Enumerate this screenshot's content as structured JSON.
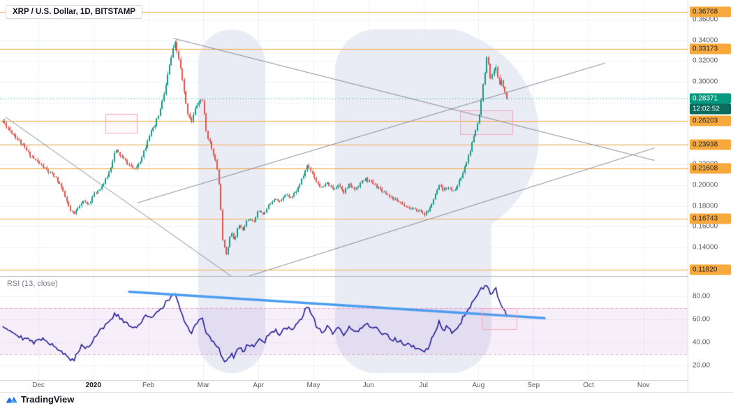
{
  "header": {
    "legend": "XRP / U.S. Dollar, 1D, BITSTAMP"
  },
  "watermark": {
    "letter": "P"
  },
  "price_axis": {
    "ticks": [
      {
        "label": "0.36000",
        "price": 0.36
      },
      {
        "label": "0.34000",
        "price": 0.34
      },
      {
        "label": "0.32000",
        "price": 0.32
      },
      {
        "label": "0.30000",
        "price": 0.3
      },
      {
        "label": "0.22000",
        "price": 0.22
      },
      {
        "label": "0.20000",
        "price": 0.2
      },
      {
        "label": "0.18000",
        "price": 0.18
      },
      {
        "label": "0.16000",
        "price": 0.16
      },
      {
        "label": "0.14000",
        "price": 0.14
      }
    ],
    "levels": [
      {
        "label": "0.36768",
        "price": 0.36768
      },
      {
        "label": "0.33173",
        "price": 0.33173
      },
      {
        "label": "0.26203",
        "price": 0.26203
      },
      {
        "label": "0.23938",
        "price": 0.23938
      },
      {
        "label": "0.21608",
        "price": 0.21608
      },
      {
        "label": "0.16743",
        "price": 0.16743
      },
      {
        "label": "0.11820",
        "price": 0.1182
      }
    ],
    "current": {
      "label": "0.28371",
      "price": 0.28371
    },
    "countdown": "12:02:52"
  },
  "time_axis": {
    "labels": [
      "Dec",
      "2020",
      "Feb",
      "Mar",
      "Apr",
      "May",
      "Jun",
      "Jul",
      "Aug",
      "Sep",
      "Oct",
      "Nov"
    ]
  },
  "rsi_pane": {
    "title": "RSI (13, close)",
    "ticks": [
      {
        "label": "80.00",
        "value": 80
      },
      {
        "label": "60.00",
        "value": 60
      },
      {
        "label": "40.00",
        "value": 40
      },
      {
        "label": "20.00",
        "value": 20
      }
    ]
  },
  "footer": {
    "brand": "TradingView"
  },
  "colors": {
    "up_candle": "#159a84",
    "down_candle": "#e8504a",
    "level_line": "#f5a73b",
    "level_badge_bg": "#f8a93c",
    "level_badge_text": "#21252e",
    "current_line": "#089981",
    "current_badge_bg": "#089981",
    "countdown_badge_bg": "#0b6b5d",
    "trendline": "#888c97",
    "box_stroke": "#f3a9bc",
    "box_fill": "rgba(243,169,188,0.07)",
    "rsi_line": "#241d94",
    "rsi_band_fill": "rgba(186,134,216,0.13)",
    "rsi_band_line": "rgba(236,100,160,0.55)",
    "rsi_trendline": "#4a9df0",
    "watermark": "#e9ebf5",
    "grid": "#eef1f7",
    "separator": "#b2b5be"
  },
  "chart_data": {
    "type": "candlestick",
    "symbol": "XRP/USD",
    "exchange": "BITSTAMP",
    "interval": "1D",
    "x_unit": "months_since_dec1_2019",
    "t_range": [
      -0.65,
      8.52
    ],
    "ylim": [
      0.112,
      0.374
    ],
    "current_price": 0.28371,
    "horizontal_levels": [
      0.36768,
      0.33173,
      0.26203,
      0.23938,
      0.21608,
      0.16743,
      0.1182
    ],
    "price_keypoints": [
      [
        -0.65,
        0.262
      ],
      [
        -0.5,
        0.252
      ],
      [
        -0.35,
        0.243
      ],
      [
        -0.2,
        0.232
      ],
      [
        -0.05,
        0.224
      ],
      [
        0.1,
        0.217
      ],
      [
        0.2,
        0.212
      ],
      [
        0.3,
        0.208
      ],
      [
        0.4,
        0.2
      ],
      [
        0.5,
        0.186
      ],
      [
        0.58,
        0.175
      ],
      [
        0.65,
        0.172
      ],
      [
        0.72,
        0.179
      ],
      [
        0.8,
        0.185
      ],
      [
        0.9,
        0.181
      ],
      [
        1.0,
        0.19
      ],
      [
        1.1,
        0.196
      ],
      [
        1.2,
        0.203
      ],
      [
        1.3,
        0.215
      ],
      [
        1.4,
        0.234
      ],
      [
        1.5,
        0.228
      ],
      [
        1.6,
        0.222
      ],
      [
        1.75,
        0.215
      ],
      [
        1.85,
        0.224
      ],
      [
        1.95,
        0.238
      ],
      [
        2.0,
        0.248
      ],
      [
        2.1,
        0.255
      ],
      [
        2.2,
        0.27
      ],
      [
        2.3,
        0.292
      ],
      [
        2.4,
        0.32
      ],
      [
        2.48,
        0.337
      ],
      [
        2.55,
        0.322
      ],
      [
        2.62,
        0.3
      ],
      [
        2.7,
        0.272
      ],
      [
        2.78,
        0.262
      ],
      [
        2.88,
        0.278
      ],
      [
        2.98,
        0.284
      ],
      [
        3.05,
        0.252
      ],
      [
        3.12,
        0.24
      ],
      [
        3.2,
        0.228
      ],
      [
        3.28,
        0.205
      ],
      [
        3.35,
        0.148
      ],
      [
        3.42,
        0.133
      ],
      [
        3.5,
        0.155
      ],
      [
        3.56,
        0.147
      ],
      [
        3.64,
        0.162
      ],
      [
        3.72,
        0.156
      ],
      [
        3.8,
        0.168
      ],
      [
        3.9,
        0.164
      ],
      [
        4.0,
        0.176
      ],
      [
        4.1,
        0.172
      ],
      [
        4.2,
        0.182
      ],
      [
        4.3,
        0.188
      ],
      [
        4.4,
        0.184
      ],
      [
        4.5,
        0.192
      ],
      [
        4.6,
        0.188
      ],
      [
        4.7,
        0.196
      ],
      [
        4.8,
        0.207
      ],
      [
        4.88,
        0.219
      ],
      [
        4.96,
        0.214
      ],
      [
        5.05,
        0.204
      ],
      [
        5.15,
        0.197
      ],
      [
        5.25,
        0.202
      ],
      [
        5.35,
        0.196
      ],
      [
        5.45,
        0.201
      ],
      [
        5.55,
        0.194
      ],
      [
        5.65,
        0.2
      ],
      [
        5.75,
        0.196
      ],
      [
        5.85,
        0.202
      ],
      [
        5.95,
        0.206
      ],
      [
        6.05,
        0.203
      ],
      [
        6.15,
        0.199
      ],
      [
        6.25,
        0.195
      ],
      [
        6.35,
        0.191
      ],
      [
        6.45,
        0.187
      ],
      [
        6.55,
        0.184
      ],
      [
        6.65,
        0.181
      ],
      [
        6.75,
        0.178
      ],
      [
        6.85,
        0.176
      ],
      [
        6.95,
        0.175
      ],
      [
        7.02,
        0.172
      ],
      [
        7.1,
        0.176
      ],
      [
        7.18,
        0.186
      ],
      [
        7.28,
        0.199
      ],
      [
        7.36,
        0.195
      ],
      [
        7.44,
        0.199
      ],
      [
        7.52,
        0.194
      ],
      [
        7.6,
        0.198
      ],
      [
        7.68,
        0.207
      ],
      [
        7.76,
        0.219
      ],
      [
        7.84,
        0.232
      ],
      [
        7.92,
        0.247
      ],
      [
        8.0,
        0.263
      ],
      [
        8.06,
        0.288
      ],
      [
        8.12,
        0.312
      ],
      [
        8.15,
        0.324
      ],
      [
        8.17,
        0.32
      ],
      [
        8.22,
        0.3
      ],
      [
        8.27,
        0.308
      ],
      [
        8.32,
        0.313
      ],
      [
        8.37,
        0.296
      ],
      [
        8.42,
        0.304
      ],
      [
        8.47,
        0.291
      ],
      [
        8.52,
        0.28371
      ]
    ],
    "trendlines": [
      {
        "name": "left-descending",
        "from": [
          -0.6,
          0.266
        ],
        "to": [
          3.75,
          0.103
        ]
      },
      {
        "name": "rising-support",
        "from": [
          1.8,
          0.183
        ],
        "to": [
          10.3,
          0.318
        ]
      },
      {
        "name": "long-descending-resistance",
        "from": [
          2.45,
          0.342
        ],
        "to": [
          11.2,
          0.224
        ]
      },
      {
        "name": "rising-from-march-low",
        "from": [
          3.4,
          0.105
        ],
        "to": [
          11.2,
          0.236
        ]
      }
    ],
    "boxes": [
      {
        "pane": "main",
        "from": [
          1.22,
          0.269
        ],
        "to": [
          1.79,
          0.251
        ]
      },
      {
        "pane": "main",
        "from": [
          7.67,
          0.272
        ],
        "to": [
          8.62,
          0.249
        ]
      },
      {
        "pane": "rsi",
        "from": [
          8.06,
          70
        ],
        "to": [
          8.69,
          52
        ]
      }
    ],
    "rsi": {
      "period": 13,
      "source": "close",
      "ylim": [
        13,
        95
      ],
      "band": [
        30,
        70
      ],
      "trendline": {
        "from": [
          1.65,
          84
        ],
        "to": [
          9.2,
          61
        ]
      },
      "keypoints": [
        [
          -0.65,
          55
        ],
        [
          -0.5,
          50
        ],
        [
          -0.35,
          46
        ],
        [
          -0.2,
          42
        ],
        [
          -0.05,
          40
        ],
        [
          0.1,
          44
        ],
        [
          0.2,
          40
        ],
        [
          0.3,
          37
        ],
        [
          0.4,
          33
        ],
        [
          0.5,
          28
        ],
        [
          0.58,
          25
        ],
        [
          0.65,
          24
        ],
        [
          0.72,
          33
        ],
        [
          0.8,
          38
        ],
        [
          0.9,
          35
        ],
        [
          1.0,
          43
        ],
        [
          1.1,
          50
        ],
        [
          1.2,
          54
        ],
        [
          1.3,
          59
        ],
        [
          1.4,
          65
        ],
        [
          1.5,
          60
        ],
        [
          1.6,
          56
        ],
        [
          1.75,
          52
        ],
        [
          1.85,
          57
        ],
        [
          1.95,
          62
        ],
        [
          2.1,
          64
        ],
        [
          2.2,
          68
        ],
        [
          2.3,
          73
        ],
        [
          2.4,
          79
        ],
        [
          2.48,
          83
        ],
        [
          2.55,
          72
        ],
        [
          2.62,
          62
        ],
        [
          2.7,
          53
        ],
        [
          2.78,
          49
        ],
        [
          2.88,
          57
        ],
        [
          2.98,
          60
        ],
        [
          3.05,
          49
        ],
        [
          3.12,
          44
        ],
        [
          3.2,
          40
        ],
        [
          3.28,
          35
        ],
        [
          3.35,
          26
        ],
        [
          3.42,
          22
        ],
        [
          3.5,
          31
        ],
        [
          3.56,
          28
        ],
        [
          3.64,
          36
        ],
        [
          3.72,
          32
        ],
        [
          3.8,
          39
        ],
        [
          3.9,
          36
        ],
        [
          4.0,
          43
        ],
        [
          4.1,
          40
        ],
        [
          4.2,
          47
        ],
        [
          4.3,
          51
        ],
        [
          4.4,
          47
        ],
        [
          4.5,
          53
        ],
        [
          4.6,
          50
        ],
        [
          4.7,
          55
        ],
        [
          4.8,
          62
        ],
        [
          4.88,
          71
        ],
        [
          4.96,
          65
        ],
        [
          5.05,
          55
        ],
        [
          5.15,
          49
        ],
        [
          5.25,
          53
        ],
        [
          5.35,
          48
        ],
        [
          5.45,
          52
        ],
        [
          5.55,
          47
        ],
        [
          5.65,
          52
        ],
        [
          5.75,
          48
        ],
        [
          5.85,
          53
        ],
        [
          5.95,
          56
        ],
        [
          6.05,
          54
        ],
        [
          6.15,
          51
        ],
        [
          6.25,
          48
        ],
        [
          6.35,
          45
        ],
        [
          6.45,
          43
        ],
        [
          6.55,
          41
        ],
        [
          6.65,
          39
        ],
        [
          6.75,
          37
        ],
        [
          6.85,
          35
        ],
        [
          6.95,
          34
        ],
        [
          7.02,
          31
        ],
        [
          7.1,
          37
        ],
        [
          7.18,
          46
        ],
        [
          7.28,
          57
        ],
        [
          7.36,
          51
        ],
        [
          7.44,
          55
        ],
        [
          7.52,
          49
        ],
        [
          7.6,
          53
        ],
        [
          7.68,
          58
        ],
        [
          7.76,
          64
        ],
        [
          7.84,
          70
        ],
        [
          7.92,
          77
        ],
        [
          8.0,
          83
        ],
        [
          8.06,
          87
        ],
        [
          8.12,
          90
        ],
        [
          8.17,
          92
        ],
        [
          8.22,
          80
        ],
        [
          8.27,
          84
        ],
        [
          8.32,
          86
        ],
        [
          8.37,
          76
        ],
        [
          8.42,
          71
        ],
        [
          8.47,
          67
        ],
        [
          8.52,
          62
        ]
      ]
    }
  }
}
